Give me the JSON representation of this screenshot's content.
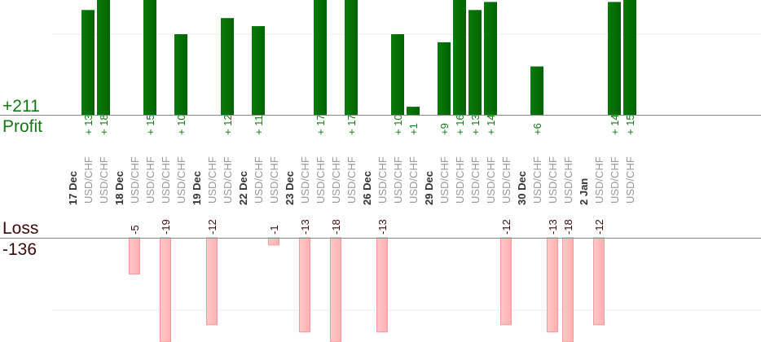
{
  "chart_data": {
    "type": "bar",
    "profit_label": "Profit",
    "loss_label": "Loss",
    "profit_total": "+211",
    "loss_total": "-136",
    "colors": {
      "profit": "#006400",
      "loss": "#ffb0b0",
      "profit_text": "#137813",
      "loss_text": "#3a0a0a",
      "instrument_text": "#999999"
    },
    "columns": [
      {
        "date": "17 Dec"
      },
      {
        "instrument": "USD/CHF",
        "value": 13,
        "label": "+13"
      },
      {
        "instrument": "USD/CHF",
        "value": 18,
        "label": "+18"
      },
      {
        "date": "18 Dec"
      },
      {
        "instrument": "USD/CHF",
        "value": -5,
        "label": "-5"
      },
      {
        "instrument": "USD/CHF",
        "value": 15,
        "label": "+15"
      },
      {
        "instrument": "USD/CHF",
        "value": -19,
        "label": "-19"
      },
      {
        "instrument": "USD/CHF",
        "value": 10,
        "label": "+10"
      },
      {
        "date": "19 Dec"
      },
      {
        "instrument": "USD/CHF",
        "value": -12,
        "label": "-12"
      },
      {
        "instrument": "USD/CHF",
        "value": 12,
        "label": "+12"
      },
      {
        "date": "22 Dec"
      },
      {
        "instrument": "USD/CHF",
        "value": 11,
        "label": "+11"
      },
      {
        "instrument": "USD/CHF",
        "value": -1,
        "label": "-1"
      },
      {
        "date": "23 Dec"
      },
      {
        "instrument": "USD/CHF",
        "value": -13,
        "label": "-13"
      },
      {
        "instrument": "USD/CHF",
        "value": 17,
        "label": "+17"
      },
      {
        "instrument": "USD/CHF",
        "value": -18,
        "label": "-18"
      },
      {
        "instrument": "USD/CHF",
        "value": 17,
        "label": "+17"
      },
      {
        "date": "26 Dec"
      },
      {
        "instrument": "USD/CHF",
        "value": -13,
        "label": "-13"
      },
      {
        "instrument": "USD/CHF",
        "value": 10,
        "label": "+10"
      },
      {
        "instrument": "USD/CHF",
        "value": 1,
        "label": "+1"
      },
      {
        "date": "29 Dec"
      },
      {
        "instrument": "USD/CHF",
        "value": 9,
        "label": "+9"
      },
      {
        "instrument": "USD/CHF",
        "value": 16,
        "label": "+16"
      },
      {
        "instrument": "USD/CHF",
        "value": 13,
        "label": "+13"
      },
      {
        "instrument": "USD/CHF",
        "value": 14,
        "label": "+14"
      },
      {
        "instrument": "USD/CHF",
        "value": -12,
        "label": "-12"
      },
      {
        "date": "30 Dec"
      },
      {
        "instrument": "USD/CHF",
        "value": 6,
        "label": "+6"
      },
      {
        "instrument": "USD/CHF",
        "value": -13,
        "label": "-13"
      },
      {
        "instrument": "USD/CHF",
        "value": -18,
        "label": "-18"
      },
      {
        "date": "2 Jan"
      },
      {
        "instrument": "USD/CHF",
        "value": -12,
        "label": "-12"
      },
      {
        "instrument": "USD/CHF",
        "value": 14,
        "label": "+14"
      },
      {
        "instrument": "USD/CHF",
        "value": 15,
        "label": "+15"
      }
    ]
  }
}
